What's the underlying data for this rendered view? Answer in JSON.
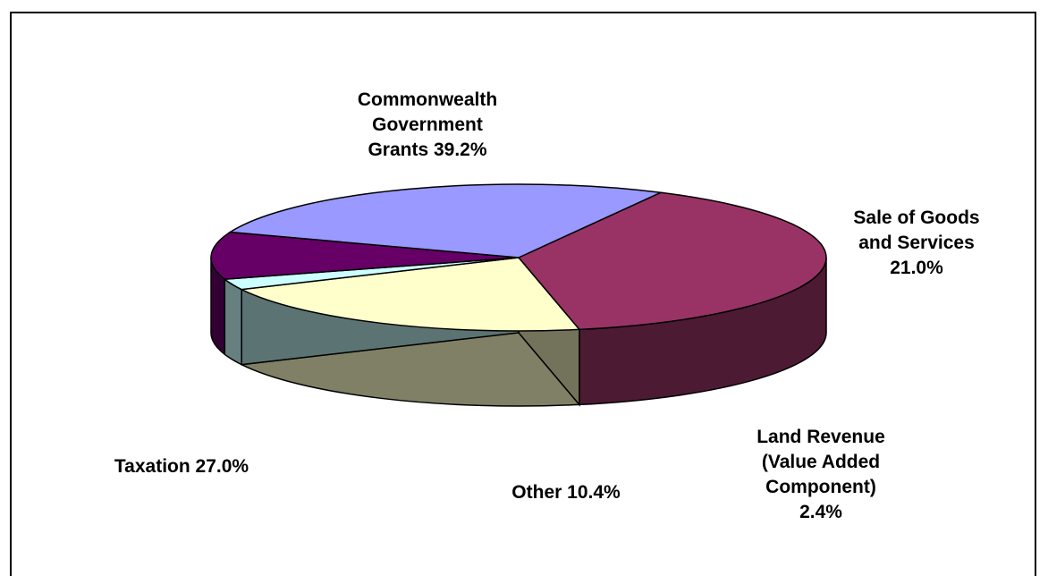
{
  "chart_data": {
    "type": "pie",
    "style": "3d-exploded",
    "slices": [
      {
        "label": "Commonwealth Government Grants",
        "value": 39.2,
        "text": [
          "Commonwealth",
          "Government",
          "Grants 39.2%"
        ],
        "color": "#993366"
      },
      {
        "label": "Sale of Goods and Services",
        "value": 21.0,
        "text": [
          "Sale of Goods",
          "and Services",
          "21.0%"
        ],
        "color": "#FFFFCC"
      },
      {
        "label": "Land Revenue (Value Added Component)",
        "value": 2.4,
        "text": [
          "Land Revenue",
          "(Value Added",
          "Component)",
          "2.4%"
        ],
        "color": "#CCFFFF"
      },
      {
        "label": "Other",
        "value": 10.4,
        "text": [
          "Other 10.4%"
        ],
        "color": "#660066"
      },
      {
        "label": "Taxation",
        "value": 27.0,
        "text": [
          "Taxation 27.0%"
        ],
        "color": "#9999FF"
      }
    ]
  }
}
